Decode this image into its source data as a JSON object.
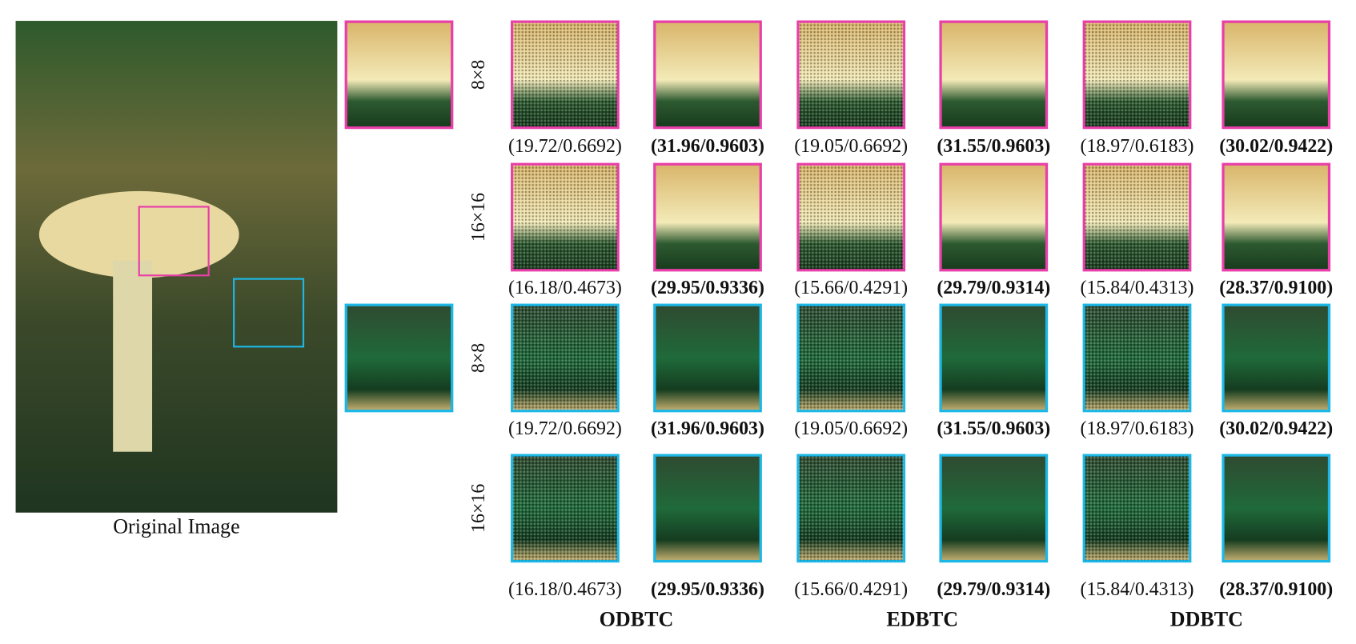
{
  "original_caption": "Original Image",
  "methods": [
    "ODBTC",
    "EDBTC",
    "DDBTC"
  ],
  "rows": [
    {
      "label": "8×8",
      "scores": [
        "(19.72/0.6692)",
        "(31.96/0.9603)",
        "(19.05/0.6692)",
        "(31.55/0.9603)",
        "(18.97/0.6183)",
        "(30.02/0.9422)"
      ]
    },
    {
      "label": "16×16",
      "scores": [
        "(16.18/0.4673)",
        "(29.95/0.9336)",
        "(15.66/0.4291)",
        "(29.79/0.9314)",
        "(15.84/0.4313)",
        "(28.37/0.9100)"
      ]
    },
    {
      "label": "8×8",
      "scores": [
        "(19.72/0.6692)",
        "(31.96/0.9603)",
        "(19.05/0.6692)",
        "(31.55/0.9603)",
        "(18.97/0.6183)",
        "(30.02/0.9422)"
      ]
    },
    {
      "label": "16×16",
      "scores": [
        "(16.18/0.4673)",
        "(29.95/0.9336)",
        "(15.66/0.4291)",
        "(29.79/0.9314)",
        "(15.84/0.4313)",
        "(28.37/0.9100)"
      ]
    }
  ]
}
